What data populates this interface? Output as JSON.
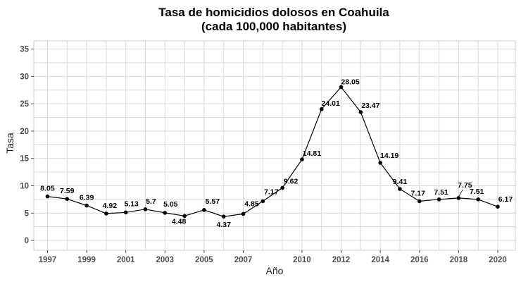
{
  "chart_data": {
    "type": "line",
    "title_line1": "Tasa de homicidios dolosos en Coahuila",
    "title_line2": "(cada 100,000 habitantes)",
    "xlabel": "Año",
    "ylabel": "Tasa",
    "x": [
      1997,
      1998,
      1999,
      2000,
      2001,
      2002,
      2003,
      2004,
      2005,
      2006,
      2007,
      2008,
      2009,
      2010,
      2011,
      2012,
      2013,
      2014,
      2015,
      2016,
      2017,
      2018,
      2019,
      2020
    ],
    "values": [
      8.05,
      7.59,
      6.39,
      4.92,
      5.13,
      5.7,
      5.05,
      4.48,
      5.57,
      4.37,
      4.85,
      7.17,
      9.62,
      14.81,
      24.01,
      28.05,
      23.47,
      14.19,
      9.41,
      7.17,
      7.51,
      7.75,
      7.51,
      6.17
    ],
    "labels": [
      "8.05",
      "7.59",
      "6.39",
      "4.92",
      "5.13",
      "5.7",
      "5.05",
      "4.48",
      "5.57",
      "4.37",
      "4.85",
      "7.17",
      "9.62",
      "14.81",
      "24.01",
      "28.05",
      "23.47",
      "14.19",
      "9.41",
      "7.17",
      "7.51",
      "7.75",
      "7.51",
      "6.17"
    ],
    "x_ticks": [
      "1997",
      "1999",
      "2001",
      "2003",
      "2005",
      "2007",
      "2010",
      "2012",
      "2014",
      "2016",
      "2018",
      "2020"
    ],
    "y_ticks": [
      "0",
      "5",
      "10",
      "15",
      "20",
      "25",
      "30",
      "35"
    ],
    "xlim": [
      1996.3,
      2020.9
    ],
    "ylim": [
      -1.8,
      36.5
    ],
    "grid": true,
    "line_color": "#000000",
    "point_color": "#000000"
  }
}
